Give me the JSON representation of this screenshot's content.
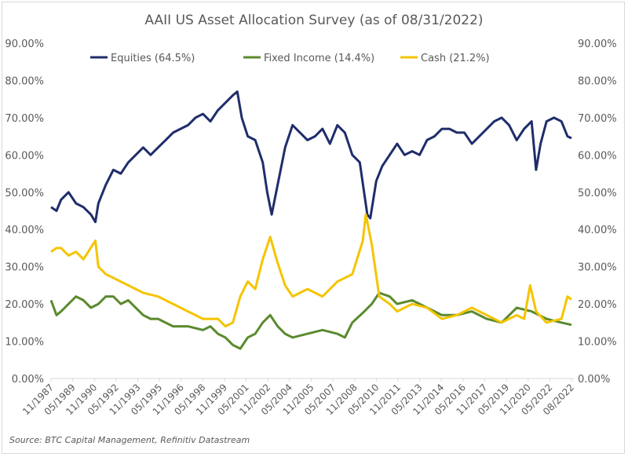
{
  "chart_data": {
    "type": "line",
    "title": "AAII US Asset Allocation Survey (as of 08/31/2022)",
    "source": "Source: BTC Capital Management, Refinitiv Datastream",
    "ylim": [
      0,
      90
    ],
    "xlim": [
      1987.83,
      2022.67
    ],
    "y_ticks": [
      "0.00%",
      "10.00%",
      "20.00%",
      "30.00%",
      "40.00%",
      "50.00%",
      "60.00%",
      "70.00%",
      "80.00%",
      "90.00%"
    ],
    "x_tick_labels": [
      "11/1987",
      "05/1989",
      "11/1990",
      "05/1992",
      "11/1993",
      "05/1995",
      "11/1996",
      "05/1998",
      "11/1999",
      "05/2001",
      "11/2002",
      "05/2004",
      "11/2005",
      "05/2007",
      "11/2008",
      "05/2010",
      "11/2011",
      "05/2013",
      "11/2014",
      "05/2016",
      "11/2017",
      "05/2019",
      "11/2020",
      "05/2022",
      "08/2022"
    ],
    "legend_placement": "top",
    "series": [
      {
        "name": "Equities (64.5%)",
        "color": "#1f2d6b",
        "points": [
          [
            1987.83,
            46
          ],
          [
            1988.2,
            45
          ],
          [
            1988.5,
            48
          ],
          [
            1989,
            50
          ],
          [
            1989.5,
            47
          ],
          [
            1990,
            46
          ],
          [
            1990.5,
            44
          ],
          [
            1990.8,
            42
          ],
          [
            1991,
            47
          ],
          [
            1991.5,
            52
          ],
          [
            1992,
            56
          ],
          [
            1992.5,
            55
          ],
          [
            1993,
            58
          ],
          [
            1993.5,
            60
          ],
          [
            1994,
            62
          ],
          [
            1994.5,
            60
          ],
          [
            1995,
            62
          ],
          [
            1995.5,
            64
          ],
          [
            1996,
            66
          ],
          [
            1996.5,
            67
          ],
          [
            1997,
            68
          ],
          [
            1997.5,
            70
          ],
          [
            1998,
            71
          ],
          [
            1998.5,
            69
          ],
          [
            1999,
            72
          ],
          [
            1999.5,
            74
          ],
          [
            2000,
            76
          ],
          [
            2000.3,
            77
          ],
          [
            2000.6,
            70
          ],
          [
            2001,
            65
          ],
          [
            2001.5,
            64
          ],
          [
            2002,
            58
          ],
          [
            2002.3,
            50
          ],
          [
            2002.6,
            44
          ],
          [
            2003,
            52
          ],
          [
            2003.5,
            62
          ],
          [
            2004,
            68
          ],
          [
            2004.5,
            66
          ],
          [
            2005,
            64
          ],
          [
            2005.5,
            65
          ],
          [
            2006,
            67
          ],
          [
            2006.5,
            63
          ],
          [
            2007,
            68
          ],
          [
            2007.5,
            66
          ],
          [
            2008,
            60
          ],
          [
            2008.5,
            58
          ],
          [
            2009,
            44
          ],
          [
            2009.2,
            43
          ],
          [
            2009.6,
            53
          ],
          [
            2010,
            57
          ],
          [
            2010.5,
            60
          ],
          [
            2011,
            63
          ],
          [
            2011.5,
            60
          ],
          [
            2012,
            61
          ],
          [
            2012.5,
            60
          ],
          [
            2013,
            64
          ],
          [
            2013.5,
            65
          ],
          [
            2014,
            67
          ],
          [
            2014.5,
            67
          ],
          [
            2015,
            66
          ],
          [
            2015.5,
            66
          ],
          [
            2016,
            63
          ],
          [
            2016.5,
            65
          ],
          [
            2017,
            67
          ],
          [
            2017.5,
            69
          ],
          [
            2018,
            70
          ],
          [
            2018.5,
            68
          ],
          [
            2019,
            64
          ],
          [
            2019.5,
            67
          ],
          [
            2020,
            69
          ],
          [
            2020.3,
            56
          ],
          [
            2020.6,
            63
          ],
          [
            2021,
            69
          ],
          [
            2021.5,
            70
          ],
          [
            2022,
            69
          ],
          [
            2022.4,
            65
          ],
          [
            2022.67,
            64.5
          ]
        ]
      },
      {
        "name": "Fixed Income (14.4%)",
        "color": "#5b8a2e",
        "points": [
          [
            1987.83,
            21
          ],
          [
            1988.2,
            17
          ],
          [
            1988.5,
            18
          ],
          [
            1989,
            20
          ],
          [
            1989.5,
            22
          ],
          [
            1990,
            21
          ],
          [
            1990.5,
            19
          ],
          [
            1991,
            20
          ],
          [
            1991.5,
            22
          ],
          [
            1992,
            22
          ],
          [
            1992.5,
            20
          ],
          [
            1993,
            21
          ],
          [
            1993.5,
            19
          ],
          [
            1994,
            17
          ],
          [
            1994.5,
            16
          ],
          [
            1995,
            16
          ],
          [
            1996,
            14
          ],
          [
            1997,
            14
          ],
          [
            1998,
            13
          ],
          [
            1998.5,
            14
          ],
          [
            1999,
            12
          ],
          [
            1999.5,
            11
          ],
          [
            2000,
            9
          ],
          [
            2000.5,
            8
          ],
          [
            2001,
            11
          ],
          [
            2001.5,
            12
          ],
          [
            2002,
            15
          ],
          [
            2002.5,
            17
          ],
          [
            2003,
            14
          ],
          [
            2003.5,
            12
          ],
          [
            2004,
            11
          ],
          [
            2005,
            12
          ],
          [
            2006,
            13
          ],
          [
            2007,
            12
          ],
          [
            2007.5,
            11
          ],
          [
            2008,
            15
          ],
          [
            2008.8,
            18
          ],
          [
            2009.3,
            20
          ],
          [
            2009.8,
            23
          ],
          [
            2010.5,
            22
          ],
          [
            2011,
            20
          ],
          [
            2012,
            21
          ],
          [
            2013,
            19
          ],
          [
            2014,
            17
          ],
          [
            2015,
            17
          ],
          [
            2016,
            18
          ],
          [
            2017,
            16
          ],
          [
            2018,
            15
          ],
          [
            2019,
            19
          ],
          [
            2020,
            18
          ],
          [
            2020.5,
            17
          ],
          [
            2021,
            16
          ],
          [
            2022,
            15
          ],
          [
            2022.67,
            14.4
          ]
        ]
      },
      {
        "name": "Cash (21.2%)",
        "color": "#f5c400",
        "points": [
          [
            1987.83,
            34
          ],
          [
            1988.2,
            35
          ],
          [
            1988.5,
            35
          ],
          [
            1989,
            33
          ],
          [
            1989.5,
            34
          ],
          [
            1990,
            32
          ],
          [
            1990.8,
            37
          ],
          [
            1991,
            30
          ],
          [
            1991.5,
            28
          ],
          [
            1992,
            27
          ],
          [
            1993,
            25
          ],
          [
            1994,
            23
          ],
          [
            1995,
            22
          ],
          [
            1996,
            20
          ],
          [
            1997,
            18
          ],
          [
            1998,
            16
          ],
          [
            1999,
            16
          ],
          [
            1999.5,
            14
          ],
          [
            2000,
            15
          ],
          [
            2000.5,
            22
          ],
          [
            2001,
            26
          ],
          [
            2001.5,
            24
          ],
          [
            2002,
            32
          ],
          [
            2002.5,
            38
          ],
          [
            2003,
            31
          ],
          [
            2003.5,
            25
          ],
          [
            2004,
            22
          ],
          [
            2005,
            24
          ],
          [
            2006,
            22
          ],
          [
            2007,
            26
          ],
          [
            2008,
            28
          ],
          [
            2008.7,
            37
          ],
          [
            2008.9,
            44
          ],
          [
            2009.3,
            36
          ],
          [
            2009.8,
            22
          ],
          [
            2010.5,
            20
          ],
          [
            2011,
            18
          ],
          [
            2012,
            20
          ],
          [
            2013,
            19
          ],
          [
            2014,
            16
          ],
          [
            2015,
            17
          ],
          [
            2016,
            19
          ],
          [
            2017,
            17
          ],
          [
            2018,
            15
          ],
          [
            2019,
            17
          ],
          [
            2019.5,
            16
          ],
          [
            2019.9,
            25
          ],
          [
            2020.3,
            18
          ],
          [
            2021,
            15
          ],
          [
            2022,
            16
          ],
          [
            2022.4,
            22
          ],
          [
            2022.67,
            21.2
          ]
        ]
      }
    ]
  }
}
